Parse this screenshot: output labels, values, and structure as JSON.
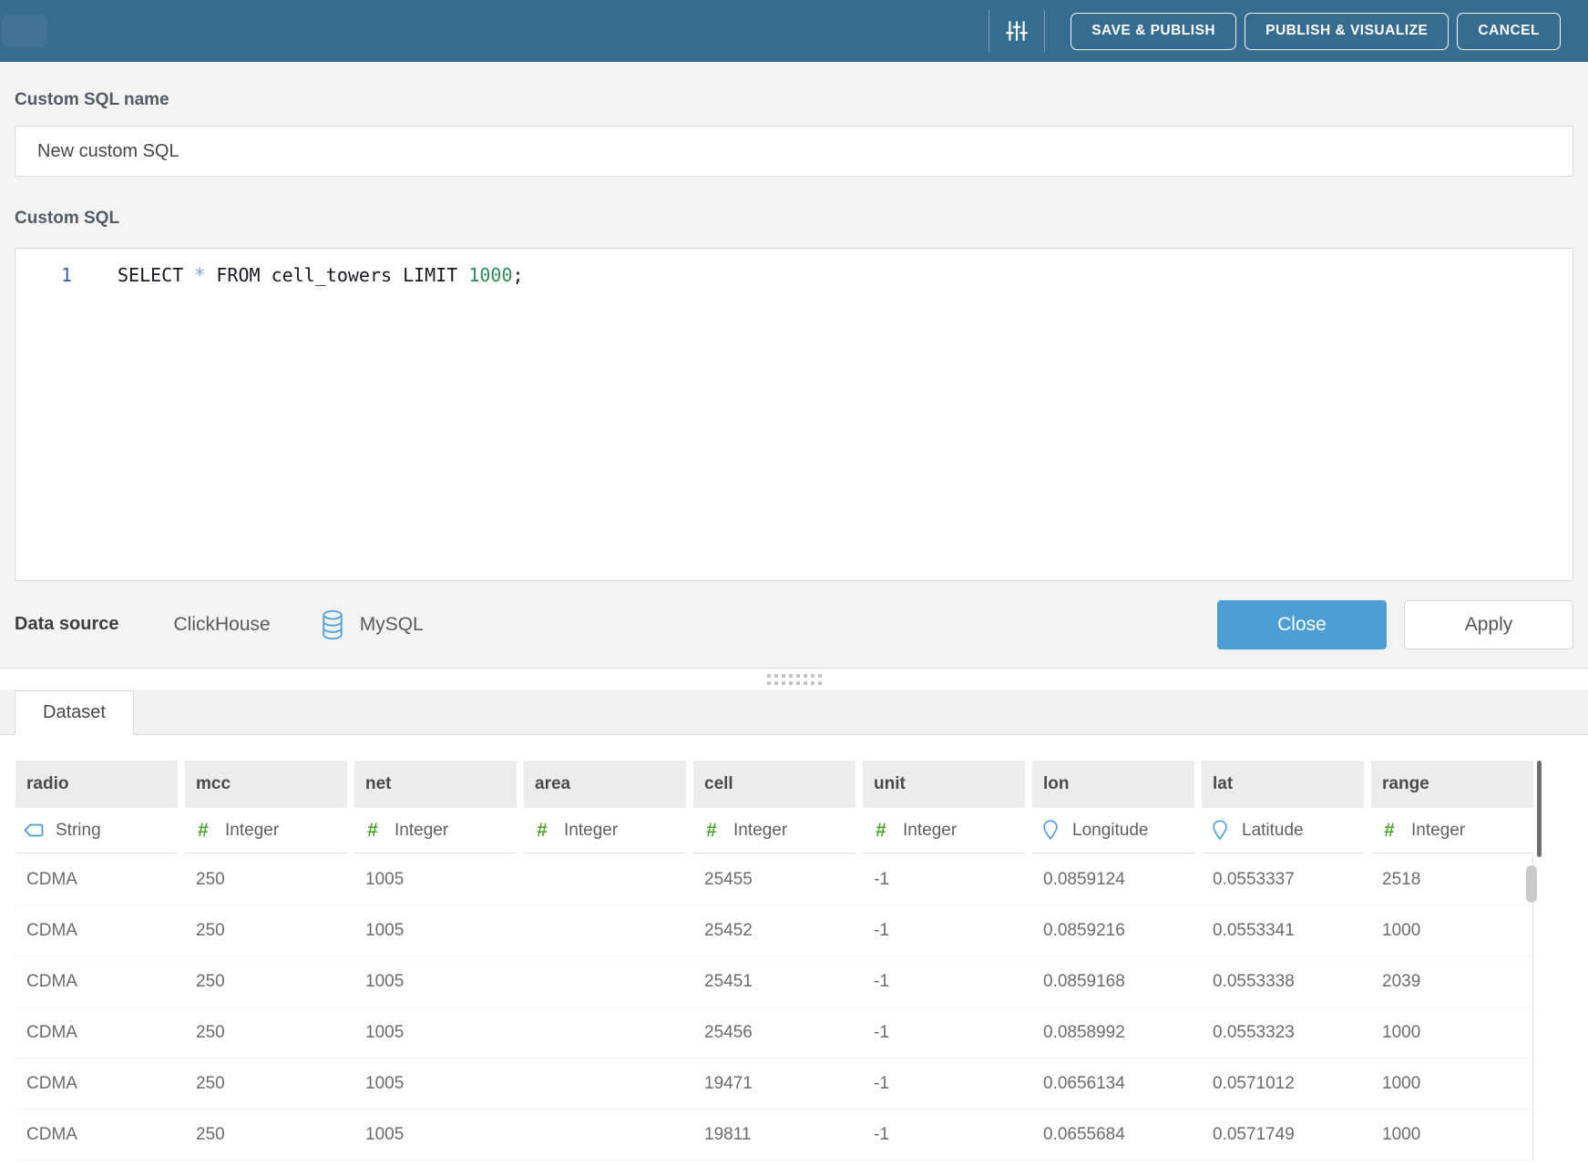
{
  "topbar": {
    "buttons": [
      {
        "label": "SAVE & PUBLISH"
      },
      {
        "label": "PUBLISH & VISUALIZE"
      },
      {
        "label": "CANCEL"
      }
    ]
  },
  "form": {
    "name_label": "Custom SQL name",
    "name_value": "New custom SQL",
    "sql_label": "Custom SQL"
  },
  "editor": {
    "line_number": "1",
    "code_select": "SELECT ",
    "code_star": "*",
    "code_middle": " FROM cell_towers LIMIT ",
    "code_number": "1000",
    "code_semicolon": ";"
  },
  "datasource": {
    "label": "Data source",
    "name": "ClickHouse",
    "engine": "MySQL",
    "close_label": "Close",
    "apply_label": "Apply"
  },
  "dataset": {
    "tab_label": "Dataset",
    "columns": [
      {
        "name": "radio",
        "type": "String",
        "icon": "string-icon"
      },
      {
        "name": "mcc",
        "type": "Integer",
        "icon": "integer-icon"
      },
      {
        "name": "net",
        "type": "Integer",
        "icon": "integer-icon"
      },
      {
        "name": "area",
        "type": "Integer",
        "icon": "integer-icon"
      },
      {
        "name": "cell",
        "type": "Integer",
        "icon": "integer-icon"
      },
      {
        "name": "unit",
        "type": "Integer",
        "icon": "integer-icon"
      },
      {
        "name": "lon",
        "type": "Longitude",
        "icon": "longitude-icon"
      },
      {
        "name": "lat",
        "type": "Latitude",
        "icon": "latitude-icon"
      },
      {
        "name": "range",
        "type": "Integer",
        "icon": "integer-icon"
      }
    ],
    "rows": [
      [
        "CDMA",
        "250",
        "1005",
        "",
        "25455",
        "-1",
        "0.0859124",
        "0.0553337",
        "2518"
      ],
      [
        "CDMA",
        "250",
        "1005",
        "",
        "25452",
        "-1",
        "0.0859216",
        "0.0553341",
        "1000"
      ],
      [
        "CDMA",
        "250",
        "1005",
        "",
        "25451",
        "-1",
        "0.0859168",
        "0.0553338",
        "2039"
      ],
      [
        "CDMA",
        "250",
        "1005",
        "",
        "25456",
        "-1",
        "0.0858992",
        "0.0553323",
        "1000"
      ],
      [
        "CDMA",
        "250",
        "1005",
        "",
        "19471",
        "-1",
        "0.0656134",
        "0.0571012",
        "1000"
      ],
      [
        "CDMA",
        "250",
        "1005",
        "",
        "19811",
        "-1",
        "0.0655684",
        "0.0571749",
        "1000"
      ]
    ]
  },
  "colors": {
    "topbar_blue": "#376C91",
    "accent_blue": "#4D9ED6",
    "icon_blue": "#4A9CD6",
    "integer_green": "#4BA52C"
  }
}
